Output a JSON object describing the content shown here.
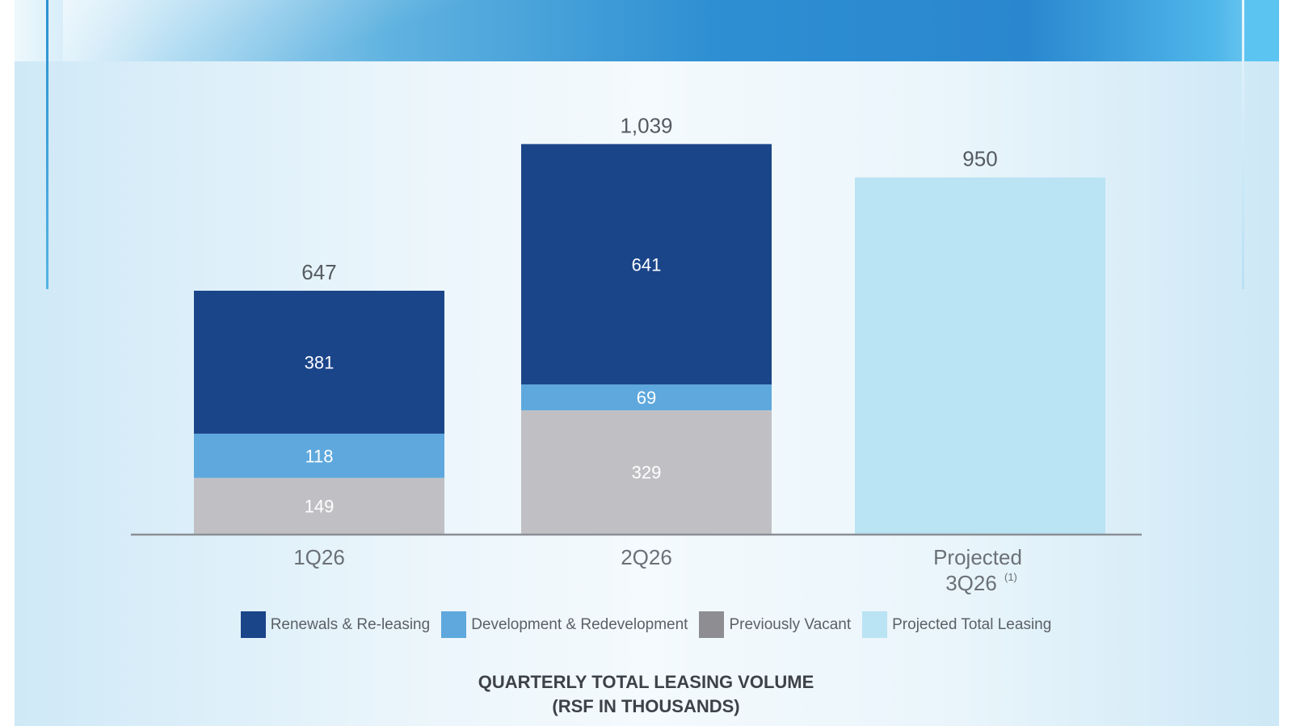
{
  "chart_data": {
    "type": "bar",
    "stacked": true,
    "title": "QUARTERLY TOTAL LEASING VOLUME",
    "subtitle": "(RSF IN THOUSANDS)",
    "categories": [
      "1Q26",
      "2Q26",
      "Projected 3Q26"
    ],
    "category_lines": [
      [
        "1Q26"
      ],
      [
        "2Q26"
      ],
      [
        "Projected",
        "3Q26"
      ]
    ],
    "category_footnotes": [
      "",
      "",
      "(1)"
    ],
    "series": [
      {
        "name": "Previously Vacant",
        "color": "#c0c0c4",
        "values": [
          149,
          329,
          null
        ]
      },
      {
        "name": "Development & Redevelopment",
        "color": "#5ea8dd",
        "values": [
          118,
          69,
          null
        ]
      },
      {
        "name": "Renewals & Re-leasing",
        "color": "#1a4589",
        "values": [
          381,
          641,
          null
        ]
      },
      {
        "name": "Projected Total Leasing",
        "color": "#bae3f3",
        "values": [
          null,
          null,
          950
        ]
      }
    ],
    "totals": [
      "647",
      "1,039",
      "950"
    ],
    "legend": [
      {
        "label": "Renewals & Re-leasing",
        "color": "#1a4589"
      },
      {
        "label": "Development & Redevelopment",
        "color": "#5ea8dd"
      },
      {
        "label": "Previously Vacant",
        "color": "#8e8e92"
      },
      {
        "label": "Projected Total Leasing",
        "color": "#bae3f3"
      }
    ],
    "legend_placement": "bottom",
    "grid": false,
    "ylim": [
      0,
      1050
    ]
  }
}
